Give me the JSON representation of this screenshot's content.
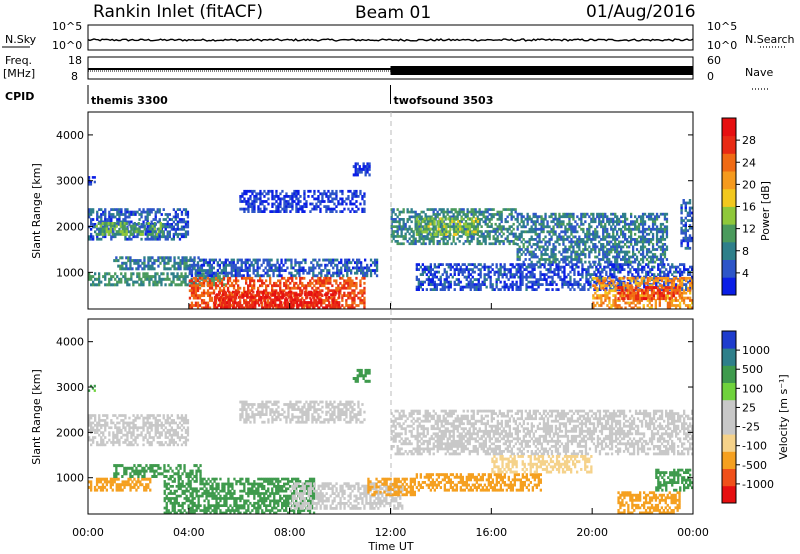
{
  "header": {
    "title": "Rankin Inlet (fitACF)",
    "beam": "Beam 01",
    "date": "01/Aug/2016"
  },
  "status_panels": {
    "nsky_label": "N.Sky",
    "nsky_ticks": [
      "10^5",
      "10^0"
    ],
    "nsearch_label": "N.Search",
    "nsearch_ticks": [
      "10^5",
      "10^0"
    ],
    "freq_label_line1": "Freq.",
    "freq_label_line2": "[MHz]",
    "freq_ticks": [
      "18",
      "8"
    ],
    "nave_label": "Nave",
    "nave_ticks": [
      "60",
      "0"
    ],
    "cpid_label": "CPID",
    "cpid_programs": [
      {
        "name": "themis 3300",
        "start_hour": 0
      },
      {
        "name": "twofsound 3503",
        "start_hour": 12
      }
    ]
  },
  "axes": {
    "ylabel": "Slant Range [km]",
    "yticks": [
      "1000",
      "2000",
      "3000",
      "4000"
    ],
    "xlabel": "Time UT",
    "xticks": [
      "00:00",
      "04:00",
      "08:00",
      "12:00",
      "16:00",
      "20:00",
      "00:00"
    ]
  },
  "colors": {
    "power_scale": [
      "#0a1ee6",
      "#2d55c8",
      "#2e7f8a",
      "#4a9a5c",
      "#8fc83a",
      "#f2c81e",
      "#f59a1e",
      "#f06a14",
      "#e82a14",
      "#e60f10"
    ],
    "velocity_scale": [
      "#e60f10",
      "#f0501a",
      "#f5a020",
      "#f5d28a",
      "#c8c8c8",
      "#c8c8c8",
      "#6fd23c",
      "#3e9a4c",
      "#2e7f8a",
      "#1e3ccd"
    ]
  },
  "chart_data": [
    {
      "type": "heatmap",
      "name": "power",
      "ylabel": "Slant Range [km]",
      "colorbar_label": "Power [dB]",
      "colorbar_ticks": [
        "4",
        "8",
        "12",
        "16",
        "20",
        "24",
        "28"
      ],
      "xlim_hours": [
        0,
        24
      ],
      "ylim_km": [
        200,
        4500
      ],
      "regions": [
        {
          "t0": 0.0,
          "t1": 4.0,
          "r0": 1700,
          "r1": 2400,
          "v": 7
        },
        {
          "t0": 0.3,
          "t1": 3.0,
          "r0": 1800,
          "r1": 2100,
          "v": 13
        },
        {
          "t0": 0.0,
          "t1": 5.5,
          "r0": 700,
          "r1": 1000,
          "v": 11
        },
        {
          "t0": 1.0,
          "t1": 4.5,
          "r0": 1050,
          "r1": 1350,
          "v": 9
        },
        {
          "t0": 4.0,
          "t1": 11.5,
          "r0": 900,
          "r1": 1300,
          "v": 7
        },
        {
          "t0": 4.0,
          "t1": 11.0,
          "r0": 200,
          "r1": 900,
          "v": 26
        },
        {
          "t0": 5.0,
          "t1": 10.0,
          "r0": 200,
          "r1": 600,
          "v": 29
        },
        {
          "t0": 6.0,
          "t1": 11.0,
          "r0": 2300,
          "r1": 2800,
          "v": 5
        },
        {
          "t0": 12.0,
          "t1": 17.0,
          "r0": 1600,
          "r1": 2400,
          "v": 10
        },
        {
          "t0": 13.0,
          "t1": 15.5,
          "r0": 1800,
          "r1": 2200,
          "v": 15
        },
        {
          "t0": 13.0,
          "t1": 24.0,
          "r0": 600,
          "r1": 1200,
          "v": 6
        },
        {
          "t0": 17.0,
          "t1": 23.0,
          "r0": 1200,
          "r1": 2300,
          "v": 9
        },
        {
          "t0": 20.0,
          "t1": 24.0,
          "r0": 200,
          "r1": 900,
          "v": 22
        },
        {
          "t0": 21.0,
          "t1": 23.5,
          "r0": 400,
          "r1": 700,
          "v": 27
        },
        {
          "t0": 0.0,
          "t1": 0.3,
          "r0": 2900,
          "r1": 3100,
          "v": 5
        },
        {
          "t0": 10.5,
          "t1": 11.2,
          "r0": 3100,
          "r1": 3400,
          "v": 5
        },
        {
          "t0": 23.5,
          "t1": 24.0,
          "r0": 1500,
          "r1": 2600,
          "v": 7
        }
      ]
    },
    {
      "type": "heatmap",
      "name": "velocity",
      "ylabel": "Slant Range [km]",
      "colorbar_label": "Velocity [m s⁻¹]",
      "colorbar_ticks": [
        "-1000",
        "-500",
        "-100",
        "-25",
        "25",
        "100",
        "500",
        "1000"
      ],
      "xlim_hours": [
        0,
        24
      ],
      "ylim_km": [
        200,
        4500
      ],
      "regions": [
        {
          "t0": 0.0,
          "t1": 4.0,
          "r0": 1700,
          "r1": 2400,
          "v": 0
        },
        {
          "t0": 6.0,
          "t1": 11.0,
          "r0": 2200,
          "r1": 2700,
          "v": 0
        },
        {
          "t0": 12.0,
          "t1": 24.0,
          "r0": 1500,
          "r1": 2500,
          "v": 0
        },
        {
          "t0": 0.0,
          "t1": 2.5,
          "r0": 700,
          "r1": 1000,
          "v": -200
        },
        {
          "t0": 1.0,
          "t1": 4.5,
          "r0": 1000,
          "r1": 1300,
          "v": 150
        },
        {
          "t0": 3.0,
          "t1": 9.0,
          "r0": 200,
          "r1": 1000,
          "v": 200
        },
        {
          "t0": 8.0,
          "t1": 12.5,
          "r0": 300,
          "r1": 900,
          "v": 0
        },
        {
          "t0": 11.0,
          "t1": 13.0,
          "r0": 600,
          "r1": 1000,
          "v": -200
        },
        {
          "t0": 13.0,
          "t1": 18.0,
          "r0": 700,
          "r1": 1100,
          "v": -150
        },
        {
          "t0": 16.0,
          "t1": 20.0,
          "r0": 1100,
          "r1": 1500,
          "v": -80
        },
        {
          "t0": 21.0,
          "t1": 23.5,
          "r0": 200,
          "r1": 700,
          "v": -300
        },
        {
          "t0": 22.5,
          "t1": 24.0,
          "r0": 700,
          "r1": 1200,
          "v": 150
        },
        {
          "t0": 0.0,
          "t1": 0.3,
          "r0": 2900,
          "r1": 3100,
          "v": 100
        },
        {
          "t0": 10.5,
          "t1": 11.2,
          "r0": 3100,
          "r1": 3400,
          "v": 150
        }
      ]
    }
  ]
}
